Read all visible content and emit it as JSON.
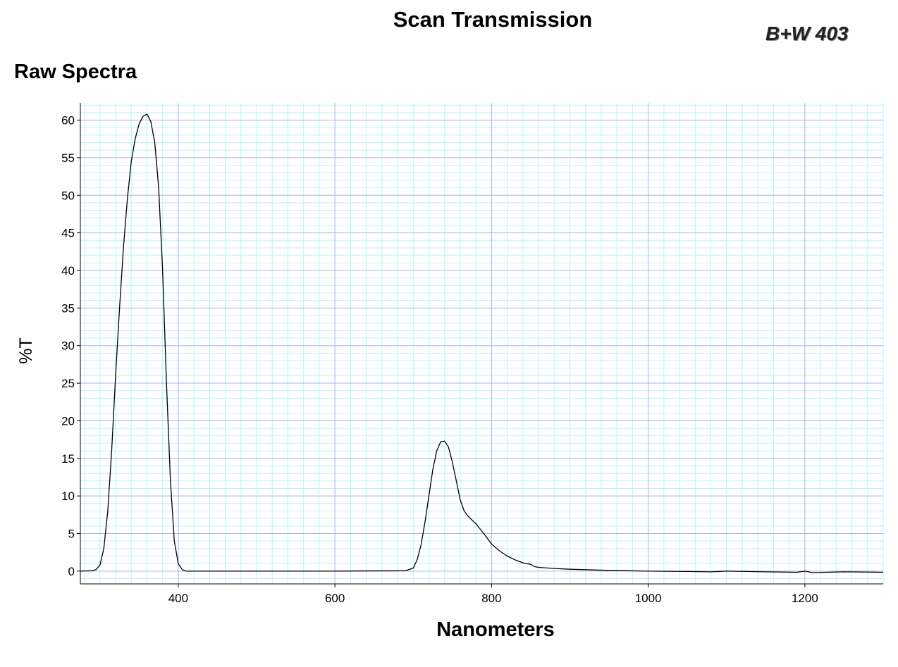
{
  "header": {
    "title": "Scan Transmission",
    "brand": "B+W 403",
    "subtitle": "Raw Spectra"
  },
  "colors": {
    "grid_major": "#9fb8e8",
    "grid_minor": "#b9f3f8",
    "line": "#000000"
  },
  "chart_data": {
    "type": "line",
    "title": "Scan Transmission",
    "xlabel": "Nanometers",
    "ylabel": "%T",
    "xlim": [
      275,
      1300
    ],
    "ylim": [
      -1.7,
      62.3
    ],
    "x_ticks": [
      400,
      600,
      800,
      1000,
      1200
    ],
    "y_ticks": [
      0,
      5,
      10,
      15,
      20,
      25,
      30,
      35,
      40,
      45,
      50,
      55,
      60
    ],
    "grid": true,
    "series": [
      {
        "x": [
          275,
          290,
          295,
          300,
          305,
          310,
          315,
          320,
          325,
          330,
          335,
          340,
          345,
          350,
          355,
          360,
          365,
          370,
          375,
          380,
          385,
          390,
          395,
          400,
          405,
          410,
          450,
          500,
          600,
          690,
          700,
          705,
          710,
          715,
          720,
          725,
          730,
          735,
          740,
          745,
          750,
          755,
          760,
          765,
          770,
          775,
          780,
          790,
          800,
          810,
          820,
          830,
          840,
          850,
          855,
          860,
          880,
          900,
          950,
          1000,
          1050,
          1080,
          1100,
          1150,
          1190,
          1200,
          1210,
          1250,
          1300
        ],
        "y": [
          0,
          0.05,
          0.2,
          0.8,
          3,
          8,
          16,
          26,
          35,
          43,
          49.5,
          54.5,
          57.5,
          59.5,
          60.5,
          60.8,
          59.8,
          57,
          51,
          40,
          25,
          12,
          4,
          1,
          0.2,
          0,
          0,
          0,
          0,
          0.05,
          0.4,
          1.5,
          3.5,
          6.5,
          10,
          13.5,
          16,
          17.2,
          17.3,
          16.5,
          14.5,
          12,
          9.5,
          8,
          7.3,
          6.8,
          6.3,
          5,
          3.6,
          2.7,
          2,
          1.5,
          1.1,
          0.9,
          0.6,
          0.5,
          0.35,
          0.25,
          0.1,
          0,
          -0.05,
          -0.1,
          0,
          -0.1,
          -0.15,
          0,
          -0.2,
          -0.1,
          -0.15
        ]
      }
    ]
  }
}
